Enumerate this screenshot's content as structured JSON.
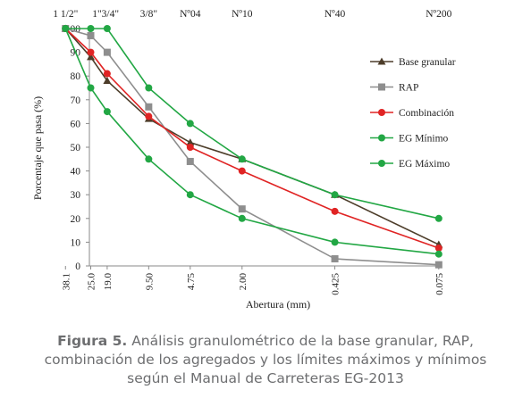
{
  "chart_data": {
    "type": "line",
    "ylabel": "Porcentaje que pasa (%)",
    "xlabel": "Abertura (mm)",
    "ylim": [
      0,
      100
    ],
    "yticks": [
      0,
      10,
      20,
      30,
      40,
      50,
      60,
      70,
      80,
      90,
      100
    ],
    "top_axis_labels": [
      "1 1/2\"",
      "1\"3/4\"",
      "3/8\"",
      "Nº04",
      "Nº10",
      "Nº40",
      "Nº200"
    ],
    "bottom_axis_labels": [
      "38.1",
      "25.0",
      "19.0",
      "9.50",
      "4.75",
      "2.00",
      "0.425",
      "0.075"
    ],
    "x_categories": [
      38.1,
      25.0,
      19.0,
      9.5,
      4.75,
      2.0,
      0.425,
      0.075
    ],
    "grid": false,
    "legend_placement": "right",
    "series": [
      {
        "name": "Base granular",
        "color": "#4d3d2a",
        "marker": "triangle",
        "x": [
          38.1,
          25.0,
          19.0,
          9.5,
          4.75,
          2.0,
          0.425,
          0.075
        ],
        "y": [
          100,
          88,
          78,
          62,
          52,
          45,
          30,
          9
        ]
      },
      {
        "name": "RAP",
        "color": "#8e8e8e",
        "marker": "square",
        "x": [
          38.1,
          25.0,
          19.0,
          9.5,
          4.75,
          2.0,
          0.425,
          0.075
        ],
        "y": [
          100,
          97,
          90,
          67,
          44,
          24,
          3,
          0.5
        ]
      },
      {
        "name": "Combinación",
        "color": "#e02424",
        "marker": "circle",
        "x": [
          38.1,
          25.0,
          19.0,
          9.5,
          4.75,
          2.0,
          0.425,
          0.075
        ],
        "y": [
          100,
          90,
          81,
          63,
          50,
          40,
          23,
          7.5
        ]
      },
      {
        "name": "EG Mínimo",
        "color": "#22a744",
        "marker": "circle",
        "x": [
          38.1,
          25.0,
          19.0,
          9.5,
          4.75,
          2.0,
          0.425,
          0.075
        ],
        "y": [
          100,
          75,
          65,
          45,
          30,
          20,
          10,
          5
        ]
      },
      {
        "name": "EG Máximo",
        "color": "#22a744",
        "marker": "circle",
        "x": [
          38.1,
          25.0,
          19.0,
          9.5,
          4.75,
          2.0,
          0.425,
          0.075
        ],
        "y": [
          100,
          100,
          100,
          75,
          60,
          45,
          30,
          20
        ]
      }
    ]
  },
  "caption": {
    "label": "Figura 5.",
    "line1": " Análisis granulométrico de la base granular, RAP,",
    "line2": "combinación de los agregados y los límites máximos y mínimos",
    "line3": "según el Manual de Carreteras EG-2013"
  }
}
